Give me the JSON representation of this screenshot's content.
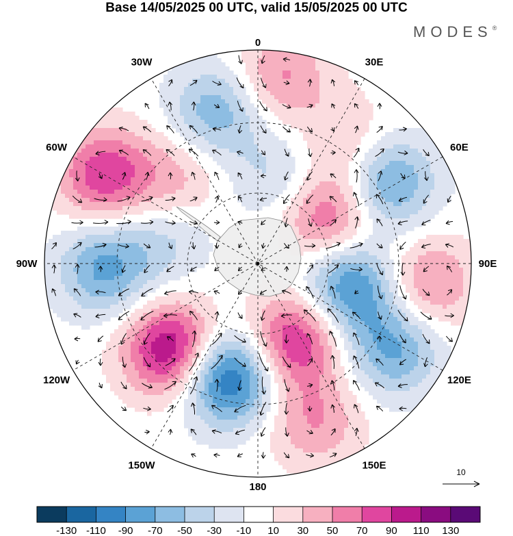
{
  "title": "Base 14/05/2025 00 UTC, valid 15/05/2025 00 UTC",
  "brand": "MODES",
  "brand_mark": "®",
  "longitude_labels": [
    {
      "deg": 0,
      "text": "0"
    },
    {
      "deg": 30,
      "text": "30E"
    },
    {
      "deg": 60,
      "text": "60E"
    },
    {
      "deg": 90,
      "text": "90E"
    },
    {
      "deg": 120,
      "text": "120E"
    },
    {
      "deg": 150,
      "text": "150E"
    },
    {
      "deg": 180,
      "text": "180"
    },
    {
      "deg": 210,
      "text": "150W"
    },
    {
      "deg": 240,
      "text": "120W"
    },
    {
      "deg": 270,
      "text": "90W"
    },
    {
      "deg": 300,
      "text": "60W"
    },
    {
      "deg": 330,
      "text": "30W"
    }
  ],
  "colorbar": {
    "colors": [
      "#0b3b5e",
      "#1a66a0",
      "#3484c4",
      "#5ba2d5",
      "#8dbde2",
      "#bcd3ea",
      "#dee4f1",
      "#ffffff",
      "#fbdcdf",
      "#f7b0c0",
      "#f07ea9",
      "#e0469f",
      "#bb1a8c",
      "#8a0c80",
      "#5a0a76"
    ],
    "labels": [
      "-130",
      "-110",
      "-90",
      "-70",
      "-50",
      "-30",
      "-10",
      "10",
      "30",
      "50",
      "70",
      "90",
      "110",
      "130"
    ]
  },
  "reference_vector": {
    "label": "10"
  },
  "field": {
    "centers": [
      {
        "lon": 345,
        "colat": 0.74,
        "value": -65
      },
      {
        "lon": 7,
        "colat": 0.88,
        "value": 55
      },
      {
        "lon": 300,
        "colat": 0.83,
        "value": 85
      },
      {
        "lon": 315,
        "colat": 0.55,
        "value": 40
      },
      {
        "lon": 268,
        "colat": 0.72,
        "value": -75
      },
      {
        "lon": 225,
        "colat": 0.57,
        "value": 118
      },
      {
        "lon": 195,
        "colat": 0.55,
        "value": -125
      },
      {
        "lon": 155,
        "colat": 0.4,
        "value": 95
      },
      {
        "lon": 103,
        "colat": 0.45,
        "value": -95
      },
      {
        "lon": 58,
        "colat": 0.72,
        "value": -80
      },
      {
        "lon": 57,
        "colat": 0.4,
        "value": 75
      },
      {
        "lon": 37,
        "colat": 0.7,
        "value": 35
      },
      {
        "lon": 97,
        "colat": 0.8,
        "value": 60
      },
      {
        "lon": 122,
        "colat": 0.75,
        "value": -75
      },
      {
        "lon": 160,
        "colat": 0.78,
        "value": 50
      },
      {
        "lon": 12,
        "colat": 0.42,
        "value": -35
      },
      {
        "lon": 285,
        "colat": 0.45,
        "value": -35
      }
    ]
  }
}
